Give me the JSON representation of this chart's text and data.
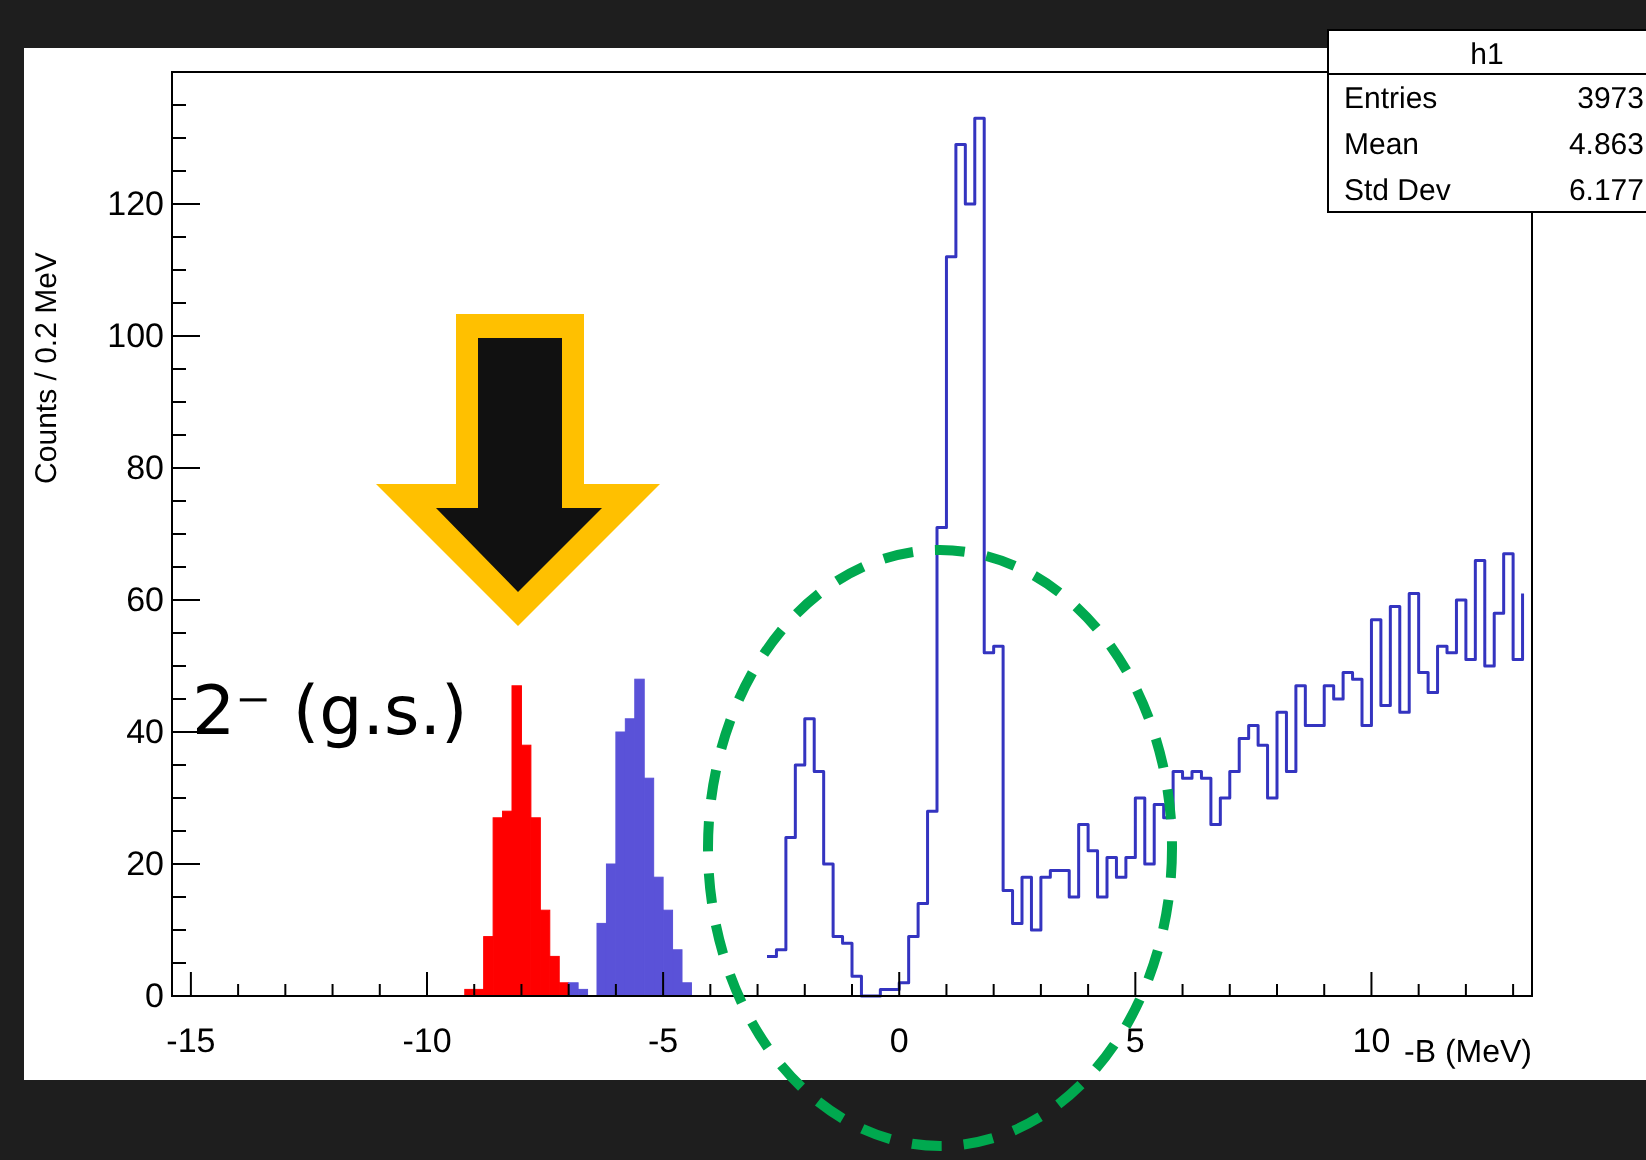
{
  "chart_data": {
    "type": "histogram",
    "xlabel": "-B (MeV)",
    "ylabel": "Counts / 0.2 MeV",
    "xlim": [
      -15.4,
      13.4
    ],
    "ylim": [
      0,
      140
    ],
    "xticks": [
      -15,
      {
        "value": -14,
        "label": null
      },
      {
        "value": -13,
        "label": null
      },
      {
        "value": -12,
        "label": null
      },
      {
        "value": -11,
        "label": null
      },
      -10,
      {
        "value": -9,
        "label": null
      },
      {
        "value": -8,
        "label": null
      },
      {
        "value": -7,
        "label": null
      },
      {
        "value": -6,
        "label": null
      },
      -5,
      {
        "value": -4,
        "label": null
      },
      {
        "value": -3,
        "label": null
      },
      {
        "value": -2,
        "label": null
      },
      {
        "value": -1,
        "label": null
      },
      0,
      {
        "value": 1,
        "label": null
      },
      {
        "value": 2,
        "label": null
      },
      {
        "value": 3,
        "label": null
      },
      {
        "value": 4,
        "label": null
      },
      5,
      {
        "value": 6,
        "label": null
      },
      {
        "value": 7,
        "label": null
      },
      {
        "value": 8,
        "label": null
      },
      {
        "value": 9,
        "label": null
      },
      10,
      {
        "value": 11,
        "label": null
      },
      {
        "value": 12,
        "label": null
      },
      {
        "value": 13,
        "label": null
      }
    ],
    "yticks": [
      0,
      {
        "value": 5,
        "label": null
      },
      {
        "value": 10,
        "label": null
      },
      {
        "value": 15,
        "label": null
      },
      20,
      {
        "value": 25,
        "label": null
      },
      {
        "value": 30,
        "label": null
      },
      {
        "value": 35,
        "label": null
      },
      40,
      {
        "value": 45,
        "label": null
      },
      {
        "value": 50,
        "label": null
      },
      {
        "value": 55,
        "label": null
      },
      60,
      {
        "value": 65,
        "label": null
      },
      {
        "value": 70,
        "label": null
      },
      {
        "value": 75,
        "label": null
      },
      80,
      {
        "value": 85,
        "label": null
      },
      {
        "value": 90,
        "label": null
      },
      {
        "value": 95,
        "label": null
      },
      100,
      {
        "value": 105,
        "label": null
      },
      {
        "value": 110,
        "label": null
      },
      {
        "value": 115,
        "label": null
      },
      120,
      {
        "value": 125,
        "label": null
      },
      {
        "value": 130,
        "label": null
      },
      {
        "value": 135,
        "label": null
      }
    ],
    "series": [
      {
        "color": "#ff0000",
        "bins": [
          -9.2,
          -9.0,
          -8.8,
          -8.6,
          -8.4,
          -8.2,
          -8.0,
          -7.8,
          -7.6,
          -7.4,
          -7.2,
          -7.0
        ],
        "values": [
          1,
          1,
          9,
          27,
          28,
          47,
          38,
          27,
          13,
          6,
          2
        ]
      },
      {
        "color": "#5a52d8",
        "bins": [
          -7.0,
          -6.8,
          -6.6,
          -6.4,
          -6.2,
          -6.0,
          -5.8,
          -5.6,
          -5.4,
          -5.2,
          -5.0,
          -4.8,
          -4.6,
          -4.4
        ],
        "values": [
          2,
          1,
          0,
          11,
          20,
          40,
          42,
          48,
          33,
          18,
          13,
          7,
          2
        ]
      },
      {
        "type": "step",
        "color": "#3434c0",
        "x": [
          -2.8,
          -2.6,
          -2.4,
          -2.2,
          -2.0,
          -1.8,
          -1.6,
          -1.4,
          -1.2,
          -1.0,
          -0.8,
          -0.6,
          -0.4,
          -0.2,
          0,
          0.2,
          0.4,
          0.6,
          0.8,
          1.0,
          1.2,
          1.4,
          1.6,
          1.8,
          2.0,
          2.2,
          2.4,
          2.6,
          2.8,
          3.0,
          3.2,
          3.4,
          3.6,
          3.8,
          4.0,
          4.2,
          4.4,
          4.6,
          4.8,
          5.0,
          5.2,
          5.4,
          5.6,
          5.8,
          6.0,
          6.2,
          6.4,
          6.6,
          6.8,
          7.0,
          7.2,
          7.4,
          7.6,
          7.8,
          8.0,
          8.2,
          8.4,
          8.6,
          8.8,
          9.0,
          9.2,
          9.4,
          9.6,
          9.8,
          10.0,
          10.2,
          10.4,
          10.6,
          10.8,
          11.0,
          11.2,
          11.4,
          11.6,
          11.8,
          12.0,
          12.2,
          12.4,
          12.6,
          12.8,
          13.0,
          13.2
        ],
        "values": [
          6,
          7,
          24,
          35,
          42,
          34,
          20,
          9,
          8,
          3,
          0,
          0,
          1,
          1,
          2,
          9,
          14,
          28,
          71,
          112,
          129,
          120,
          133,
          52,
          53,
          16,
          11,
          18,
          10,
          18,
          19,
          19,
          15,
          26,
          22,
          15,
          21,
          18,
          21,
          30,
          20,
          29,
          27,
          34,
          33,
          34,
          33,
          26,
          30,
          34,
          39,
          41,
          38,
          30,
          43,
          34,
          47,
          41,
          41,
          47,
          45,
          49,
          48,
          41,
          57,
          44,
          59,
          43,
          61,
          49,
          46,
          53,
          52,
          60,
          51,
          66,
          50,
          58,
          67,
          51,
          61
        ]
      }
    ],
    "annotations": [
      "2⁻ (g.s.)",
      "h1",
      "Entries",
      "3973",
      "Mean",
      "4.863",
      "Std Dev",
      "6.177"
    ]
  }
}
